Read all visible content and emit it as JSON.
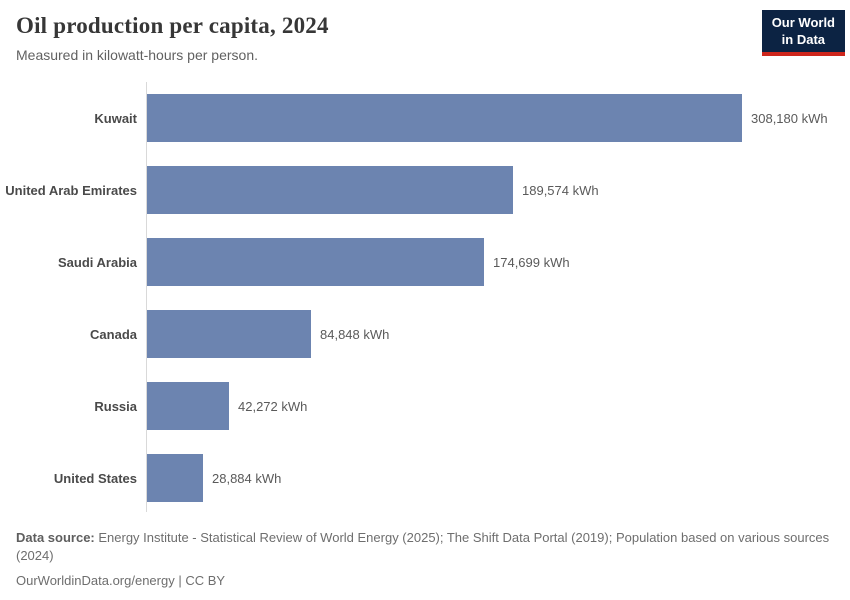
{
  "header": {
    "title": "Oil production per capita, 2024",
    "subtitle": "Measured in kilowatt-hours per person."
  },
  "logo": {
    "line1": "Our World",
    "line2": "in Data"
  },
  "colors": {
    "bar": "#6c84b0",
    "axis": "#d9d9d9",
    "logo_bg": "#0c2343",
    "logo_accent": "#ce261c"
  },
  "chart_data": {
    "type": "bar",
    "orientation": "horizontal",
    "title": "Oil production per capita, 2024",
    "subtitle": "Measured in kilowatt-hours per person.",
    "unit": "kWh",
    "xlim": [
      0,
      308180
    ],
    "grid": false,
    "legend": "none",
    "categories": [
      "Kuwait",
      "United Arab Emirates",
      "Saudi Arabia",
      "Canada",
      "Russia",
      "United States"
    ],
    "values": [
      308180,
      189574,
      174699,
      84848,
      42272,
      28884
    ],
    "rows": [
      {
        "label": "Kuwait",
        "value": 308180,
        "display": "308,180 kWh"
      },
      {
        "label": "United Arab Emirates",
        "value": 189574,
        "display": "189,574 kWh"
      },
      {
        "label": "Saudi Arabia",
        "value": 174699,
        "display": "174,699 kWh"
      },
      {
        "label": "Canada",
        "value": 84848,
        "display": "84,848 kWh"
      },
      {
        "label": "Russia",
        "value": 42272,
        "display": "42,272 kWh"
      },
      {
        "label": "United States",
        "value": 28884,
        "display": "28,884 kWh"
      }
    ]
  },
  "footer": {
    "source_label": "Data source:",
    "source_text": " Energy Institute - Statistical Review of World Energy (2025); The Shift Data Portal (2019); Population based on various sources (2024)",
    "credit": "OurWorldinData.org/energy | CC BY"
  }
}
